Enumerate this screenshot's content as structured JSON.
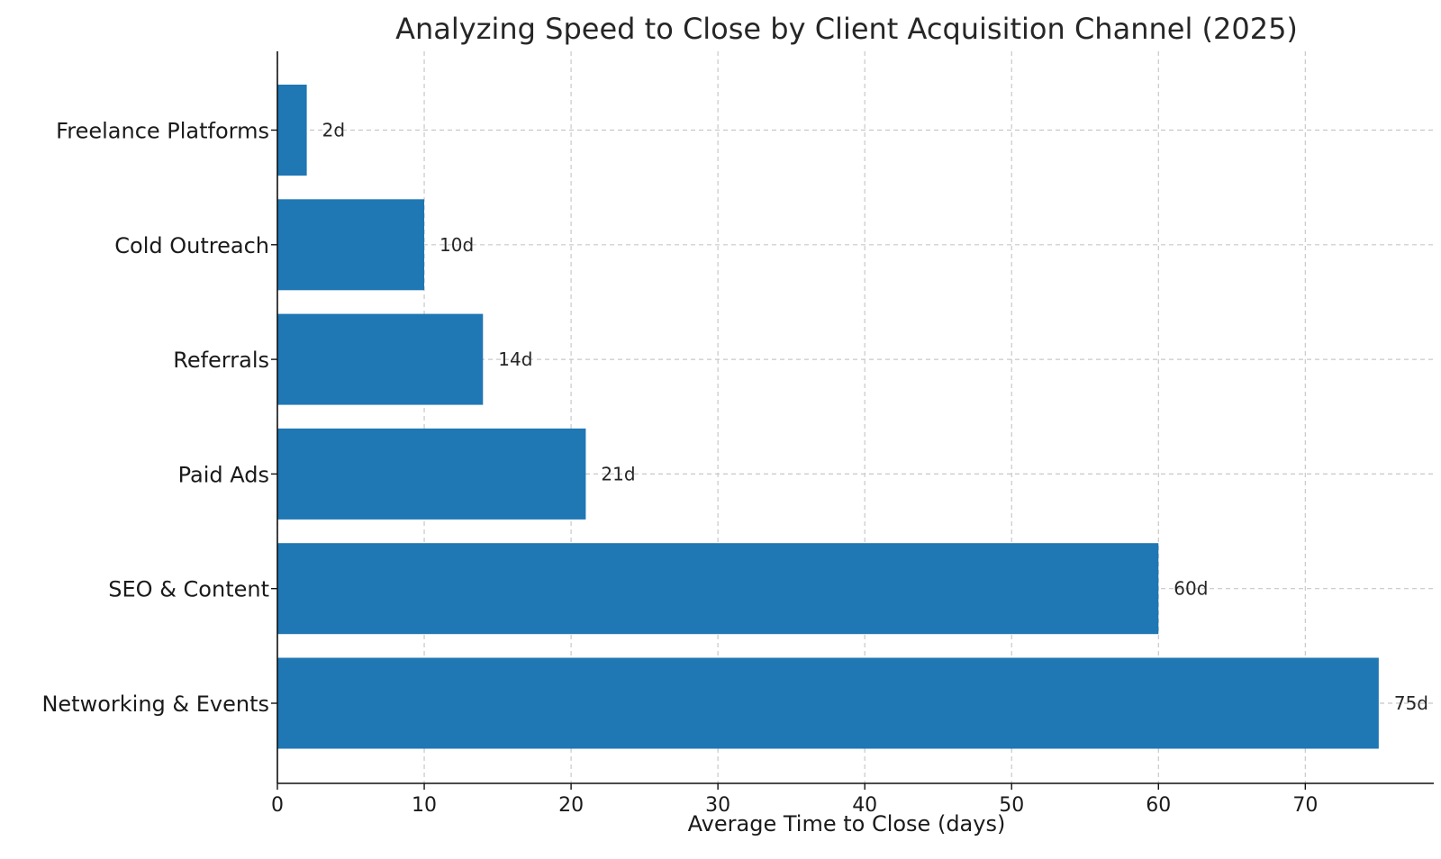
{
  "chart_data": {
    "type": "bar",
    "orientation": "horizontal",
    "title": "Analyzing Speed to Close by Client Acquisition Channel (2025)",
    "xlabel": "Average Time to Close (days)",
    "ylabel": "",
    "categories": [
      "Freelance Platforms",
      "Cold Outreach",
      "Referrals",
      "Paid Ads",
      "SEO & Content",
      "Networking & Events"
    ],
    "values": [
      2,
      10,
      14,
      21,
      60,
      75
    ],
    "data_labels": [
      "2d",
      "10d",
      "14d",
      "21d",
      "60d",
      "75d"
    ],
    "xlim": [
      0,
      78.75
    ],
    "xticks": [
      0,
      10,
      20,
      30,
      40,
      50,
      60,
      70
    ],
    "grid": true,
    "legend": "none",
    "bar_color": "#1f77b4"
  }
}
